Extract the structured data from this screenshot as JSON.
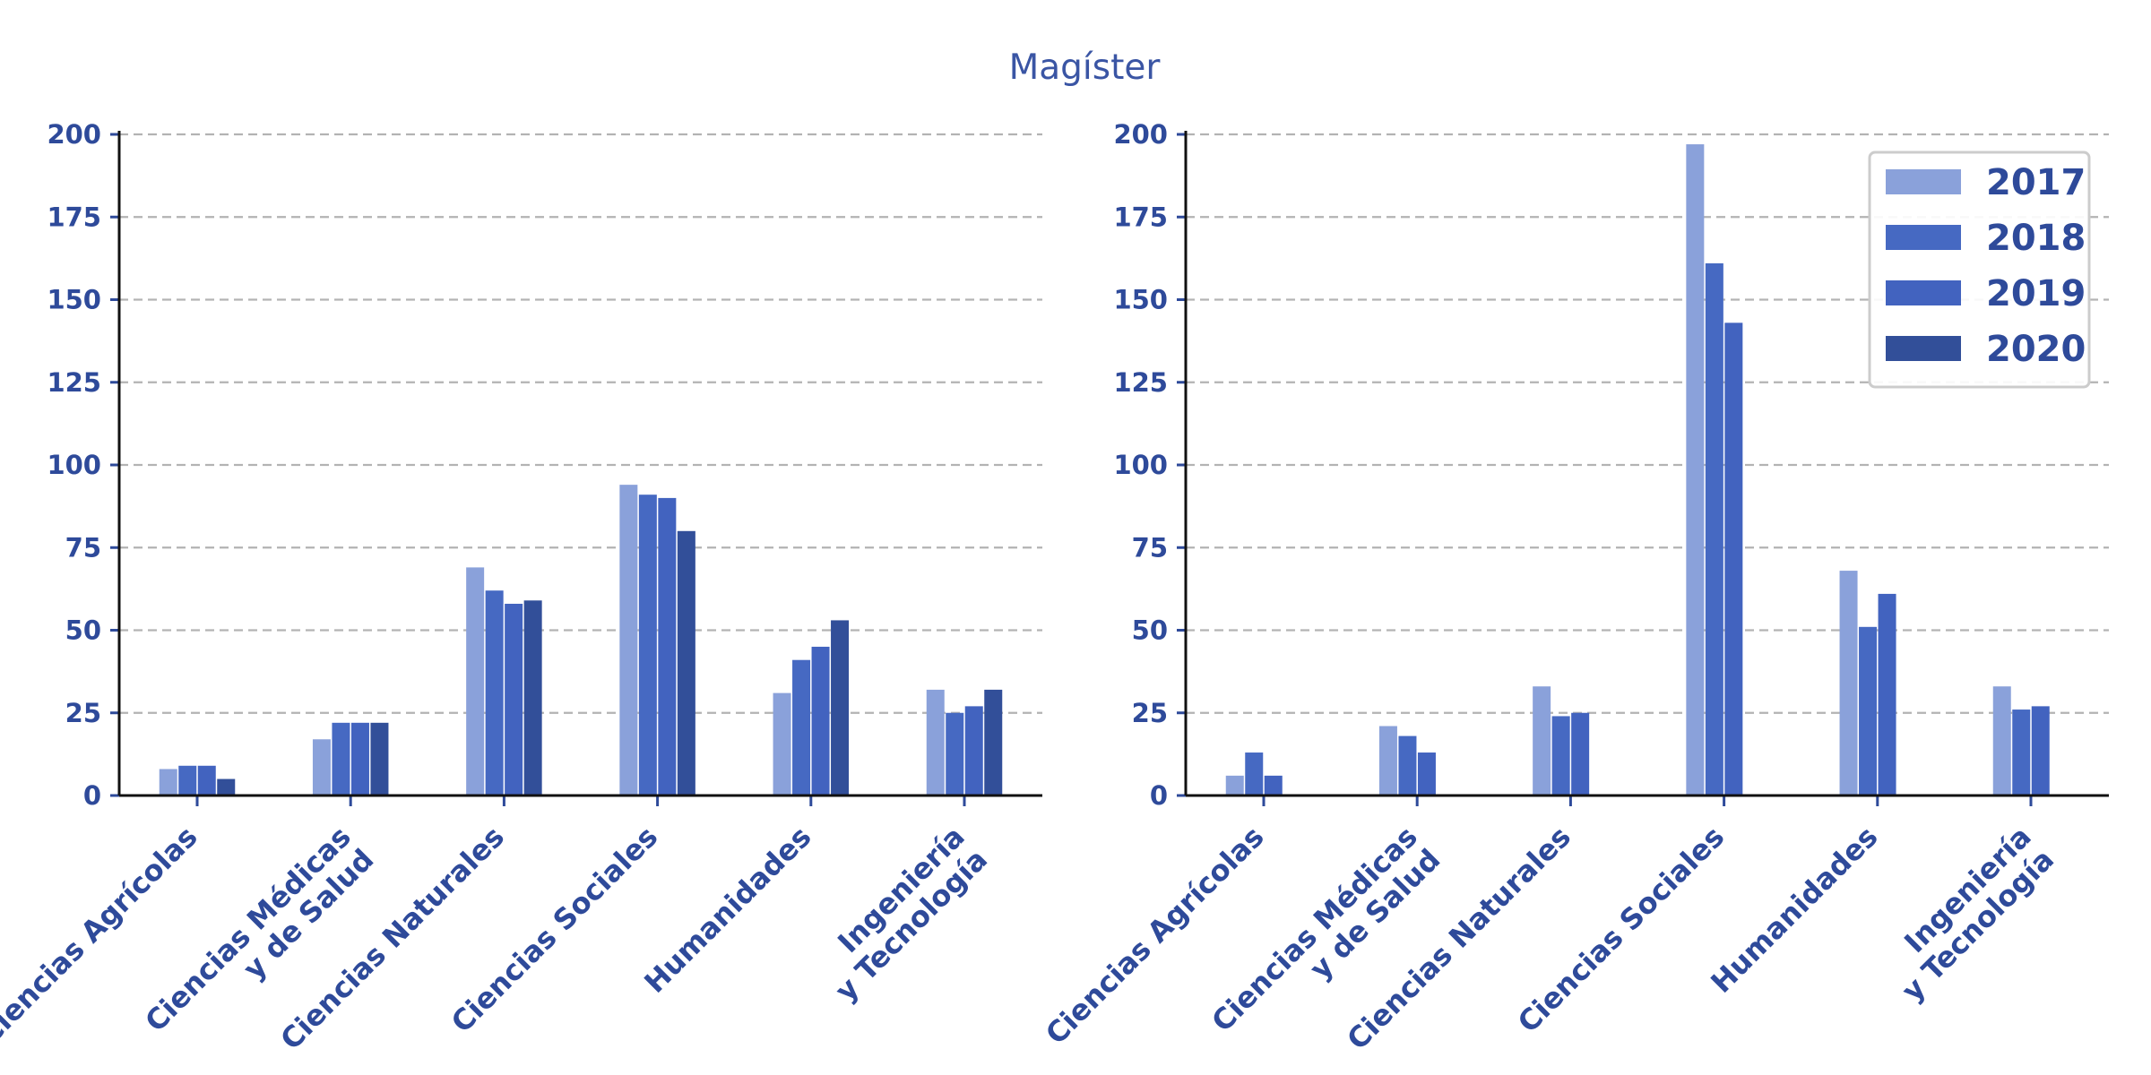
{
  "title": "Magíster",
  "colors": {
    "text": "#2e4a9a",
    "series": [
      "#8aa1da",
      "#4669c2",
      "#4263bf",
      "#324f99"
    ]
  },
  "legend": {
    "placement": "top-right of second chart",
    "entries": [
      "2017",
      "2018",
      "2019",
      "2020"
    ]
  },
  "chart_data": [
    {
      "type": "bar",
      "title": "",
      "xlabel": "",
      "ylabel": "",
      "ylim": [
        0,
        200
      ],
      "yticks": [
        0,
        25,
        50,
        75,
        100,
        125,
        150,
        175,
        200
      ],
      "grid": true,
      "categories": [
        [
          "Ciencias Agrícolas"
        ],
        [
          "Ciencias Médicas",
          "y de Salud"
        ],
        [
          "Ciencias Naturales"
        ],
        [
          "Ciencias Sociales"
        ],
        [
          "Humanidades"
        ],
        [
          "Ingeniería",
          "y Tecnología"
        ]
      ],
      "series": [
        {
          "name": "2017",
          "values": [
            8,
            17,
            69,
            94,
            31,
            32
          ]
        },
        {
          "name": "2018",
          "values": [
            9,
            22,
            62,
            91,
            41,
            25
          ]
        },
        {
          "name": "2019",
          "values": [
            9,
            22,
            58,
            90,
            45,
            27
          ]
        },
        {
          "name": "2020",
          "values": [
            5,
            22,
            59,
            80,
            53,
            32
          ]
        }
      ]
    },
    {
      "type": "bar",
      "title": "",
      "xlabel": "",
      "ylabel": "",
      "ylim": [
        0,
        200
      ],
      "yticks": [
        0,
        25,
        50,
        75,
        100,
        125,
        150,
        175,
        200
      ],
      "grid": true,
      "categories": [
        [
          "Ciencias Agrícolas"
        ],
        [
          "Ciencias Médicas",
          "y de Salud"
        ],
        [
          "Ciencias Naturales"
        ],
        [
          "Ciencias Sociales"
        ],
        [
          "Humanidades"
        ],
        [
          "Ingeniería",
          "y Tecnología"
        ]
      ],
      "series": [
        {
          "name": "2017",
          "values": [
            6,
            21,
            33,
            197,
            68,
            33
          ]
        },
        {
          "name": "2018",
          "values": [
            13,
            18,
            24,
            161,
            51,
            26
          ]
        },
        {
          "name": "2019",
          "values": [
            6,
            13,
            25,
            143,
            61,
            27
          ]
        }
      ]
    }
  ]
}
